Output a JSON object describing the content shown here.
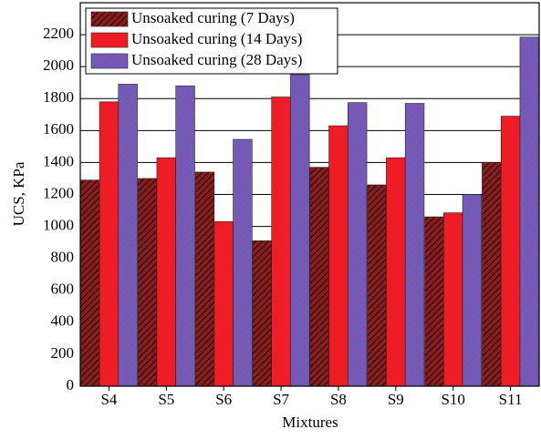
{
  "chart_data": {
    "type": "bar",
    "x_label": "Mixtures",
    "y_label": "UCS, KPa",
    "categories": [
      "S4",
      "S5",
      "S6",
      "S7",
      "S8",
      "S9",
      "S10",
      "S11"
    ],
    "series": [
      {
        "name": "Unsoaked curing (7 Days)",
        "color": "#8b1c1c",
        "values": [
          1290,
          1300,
          1340,
          910,
          1370,
          1260,
          1060,
          1400
        ]
      },
      {
        "name": "Unsoaked curing (14 Days)",
        "color": "#ee1c24",
        "values": [
          1780,
          1430,
          1030,
          1810,
          1630,
          1430,
          1085,
          1690
        ]
      },
      {
        "name": "Unsoaked curing (28 Days)",
        "color": "#6a5fc0",
        "values": [
          1890,
          1880,
          1545,
          1950,
          1775,
          1770,
          1200,
          2185
        ]
      }
    ],
    "ylim": [
      0,
      2400
    ],
    "yticks": [
      0,
      200,
      400,
      600,
      800,
      1000,
      1200,
      1400,
      1600,
      1800,
      2000,
      2200
    ],
    "grid": true
  }
}
